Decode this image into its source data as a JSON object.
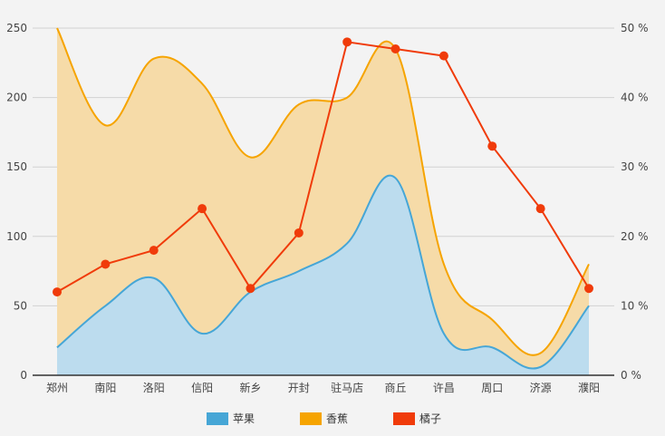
{
  "chart_data": {
    "type": "area",
    "categories": [
      "郑州",
      "南阳",
      "洛阳",
      "信阳",
      "新乡",
      "开封",
      "驻马店",
      "商丘",
      "许昌",
      "周口",
      "济源",
      "濮阳"
    ],
    "series": [
      {
        "name": "苹果",
        "type": "area",
        "axis": "left",
        "color": "#46a6d6",
        "fill": "#bcdcee",
        "values": [
          20,
          50,
          70,
          30,
          60,
          75,
          95,
          142,
          30,
          20,
          6,
          50
        ]
      },
      {
        "name": "香蕉",
        "type": "area",
        "axis": "left",
        "color": "#f6a400",
        "fill": "#f6dba8",
        "values": [
          250,
          180,
          228,
          210,
          157,
          195,
          200,
          235,
          80,
          40,
          16,
          80
        ]
      },
      {
        "name": "橘子",
        "type": "line",
        "axis": "right",
        "color": "#f03b0a",
        "values": [
          12,
          16,
          18,
          24,
          12.5,
          20.5,
          48,
          47,
          46,
          33,
          24,
          12.5
        ]
      }
    ],
    "y_left": {
      "min": 0,
      "max": 250,
      "ticks": [
        "0",
        "50",
        "100",
        "150",
        "200",
        "250"
      ]
    },
    "y_right": {
      "min": 0,
      "max": 50,
      "ticks": [
        "0 %",
        "10 %",
        "20 %",
        "30 %",
        "40 %",
        "50 %"
      ]
    },
    "grid": true,
    "legend_position": "bottom",
    "legend": [
      {
        "name": "苹果",
        "color": "#46a6d6"
      },
      {
        "name": "香蕉",
        "color": "#f6a400"
      },
      {
        "name": "橘子",
        "color": "#f03b0a"
      }
    ]
  }
}
